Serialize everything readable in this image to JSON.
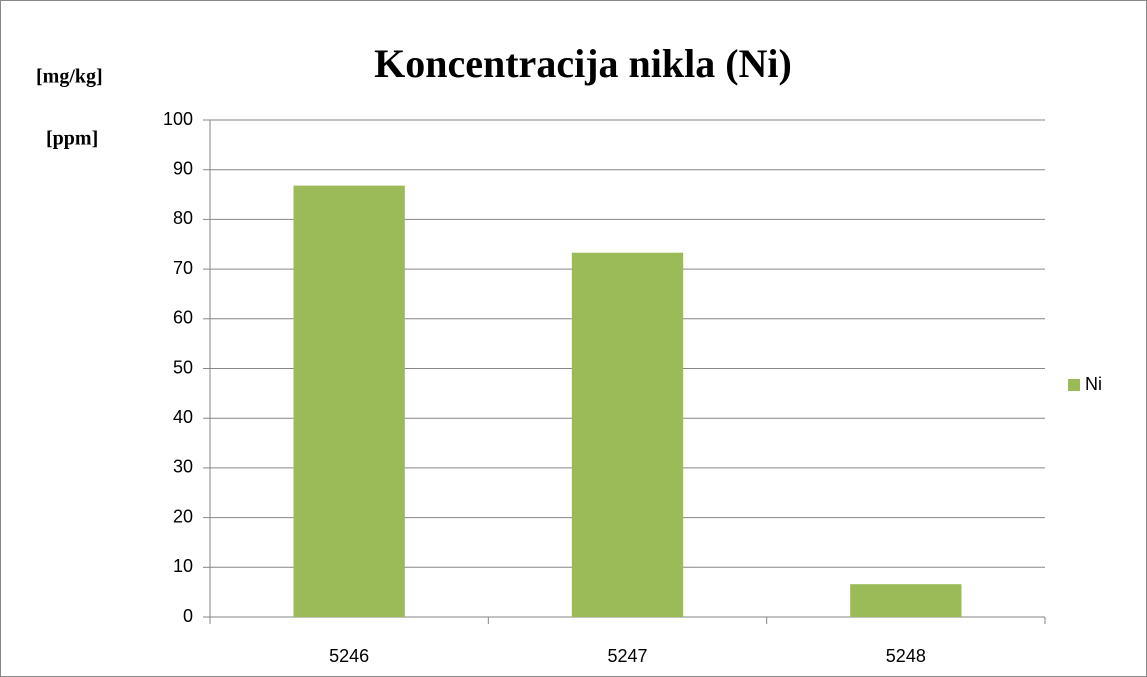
{
  "chart_data": {
    "type": "bar",
    "title": "Koncentracija nikla (Ni)",
    "y_label": [
      "[mg/kg]",
      "[ppm]"
    ],
    "categories": [
      "5246",
      "5247",
      "5248"
    ],
    "series": [
      {
        "name": "Ni",
        "color": "#9bbb59",
        "values": [
          86.8,
          73.3,
          6.6
        ]
      }
    ],
    "ylim": [
      0,
      100
    ],
    "yticks": [
      0,
      10,
      20,
      30,
      40,
      50,
      60,
      70,
      80,
      90,
      100
    ],
    "grid": true,
    "legend": "right"
  }
}
